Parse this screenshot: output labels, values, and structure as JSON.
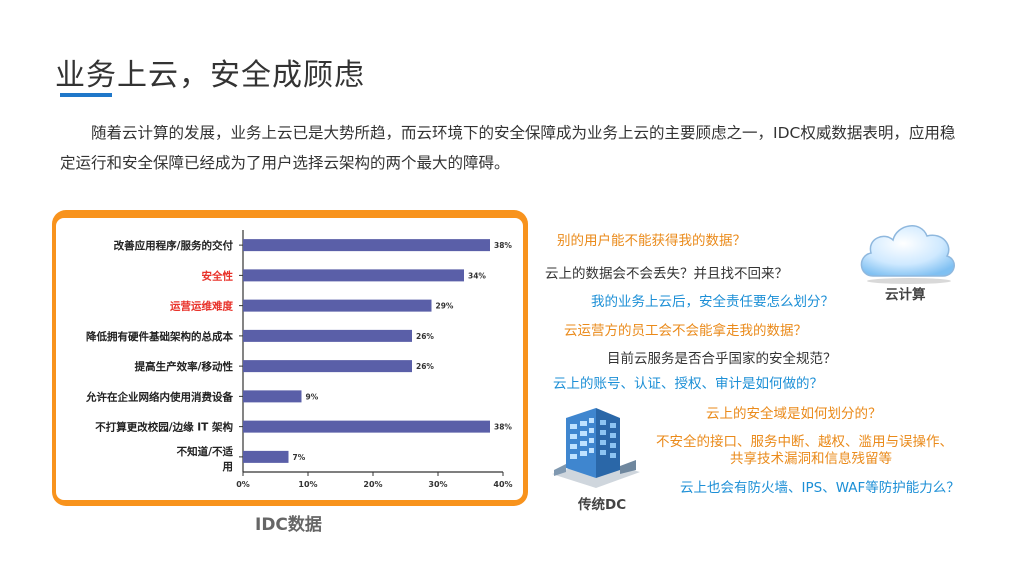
{
  "slide": {
    "title": "业务上云，安全成顾虑",
    "intro": "随着云计算的发展，业务上云已是大势所趋，而云环境下的安全保障成为业务上云的主要顾虑之一，IDC权威数据表明，应用稳定运行和安全保障已经成为了用户选择云架构的两个最大的障碍。",
    "caption": "IDC数据",
    "cloud_label": "云计算",
    "dc_label": "传统DC",
    "accent_color": "#1f77c9",
    "panel_color": "#f8931d"
  },
  "questions": [
    {
      "text": "别的用户能不能获得我的数据？",
      "color": "orange"
    },
    {
      "text": "云上的数据会不会丢失？并且找不回来？",
      "color": "dark"
    },
    {
      "text": "我的业务上云后，安全责任要怎么划分？",
      "color": "blue"
    },
    {
      "text": "云运营方的员工会不会能拿走我的数据？",
      "color": "orange"
    },
    {
      "text": "目前云服务是否合乎国家的安全规范？",
      "color": "dark"
    },
    {
      "text": "云上的账号、认证、授权、审计是如何做的？",
      "color": "blue"
    },
    {
      "text": "云上的安全域是如何划分的？",
      "color": "orange"
    },
    {
      "text": "不安全的接口、服务中断、越权、滥用与误操作、",
      "color": "orange"
    },
    {
      "text": "共享技术漏洞和信息残留等",
      "color": "orange"
    },
    {
      "text": "云上也会有防火墙、IPS、WAF等防护能力么？",
      "color": "blue"
    }
  ],
  "chart_data": {
    "type": "bar",
    "orientation": "horizontal",
    "categories": [
      "改善应用程序/服务的交付",
      "安全性",
      "运营运维难度",
      "降低拥有硬件基础架构的总成本",
      "提高生产效率/移动性",
      "允许在企业网络内使用消费设备",
      "不打算更改校园/边缘 IT 架构",
      "不知道/不适用"
    ],
    "values": [
      38,
      34,
      29,
      26,
      26,
      9,
      38,
      7
    ],
    "value_labels": [
      "38%",
      "34%",
      "29%",
      "26%",
      "26%",
      "9%",
      "38%",
      "7%"
    ],
    "highlight": [
      false,
      true,
      true,
      false,
      false,
      false,
      false,
      false
    ],
    "xlim": [
      0,
      40
    ],
    "x_ticks": [
      "0%",
      "10%",
      "20%",
      "30%",
      "40%"
    ],
    "grid": false,
    "bar_color": "#5a5fa8",
    "highlight_color": "#e8322a"
  }
}
